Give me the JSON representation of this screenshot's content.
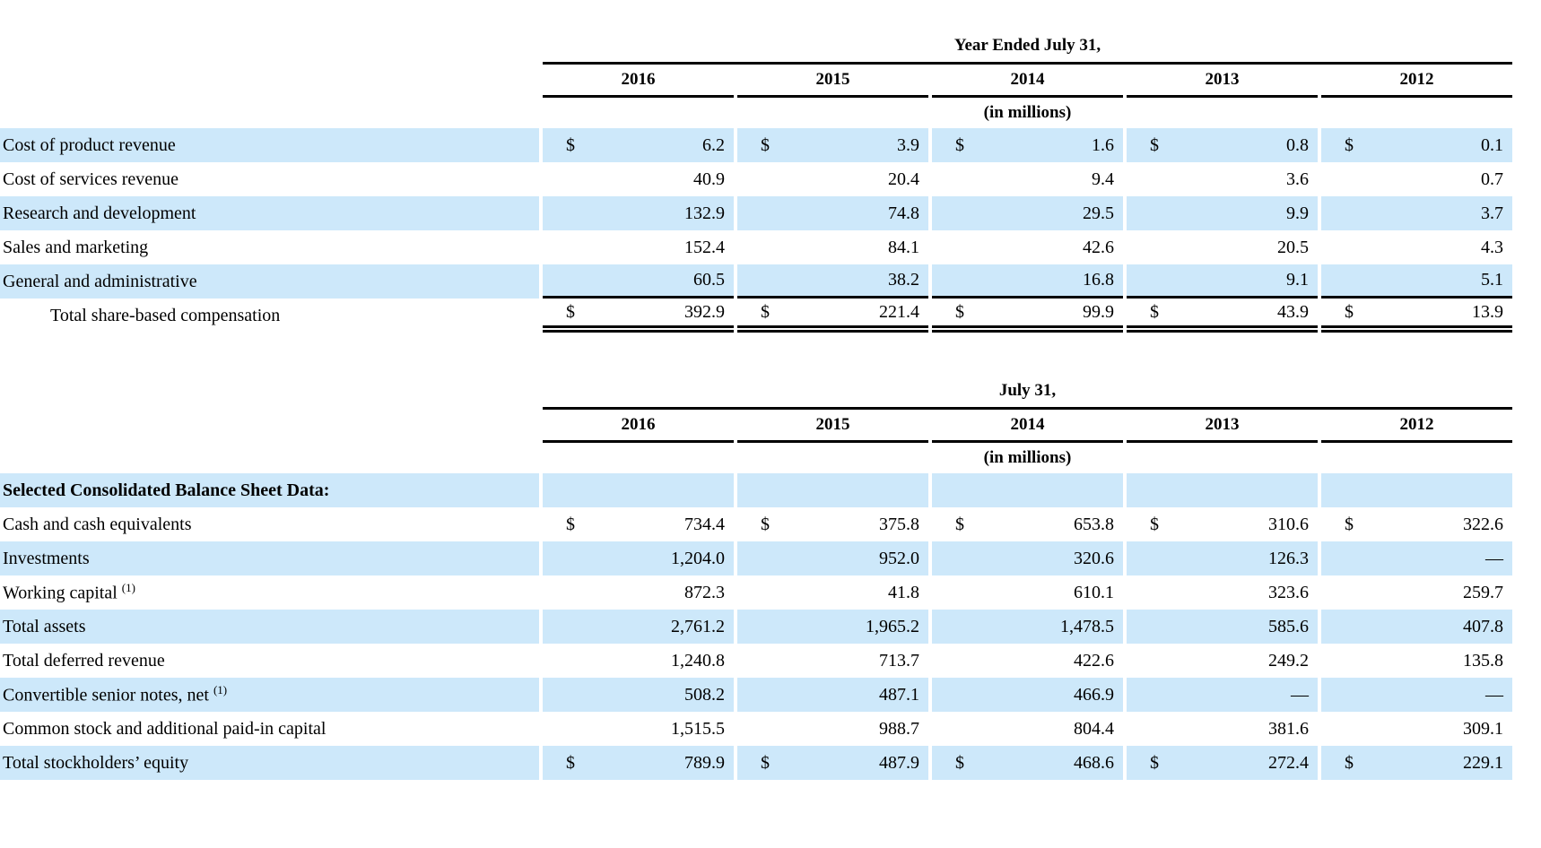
{
  "colors": {
    "row_highlight": "#cde8fa",
    "rule": "#000000",
    "text": "#000000",
    "background": "#ffffff"
  },
  "tables": [
    {
      "id": "compensation",
      "caption": "Year Ended July 31,",
      "unit_note": "(in millions)",
      "columns": [
        "2016",
        "2015",
        "2014",
        "2013",
        "2012"
      ],
      "rows": [
        {
          "label": "Cost of product revenue",
          "dollar": true,
          "shaded": true,
          "values": [
            "6.2",
            "3.9",
            "1.6",
            "0.8",
            "0.1"
          ]
        },
        {
          "label": "Cost of services revenue",
          "values": [
            "40.9",
            "20.4",
            "9.4",
            "3.6",
            "0.7"
          ]
        },
        {
          "label": "Research and development",
          "shaded": true,
          "values": [
            "132.9",
            "74.8",
            "29.5",
            "9.9",
            "3.7"
          ]
        },
        {
          "label": "Sales and marketing",
          "values": [
            "152.4",
            "84.1",
            "42.6",
            "20.5",
            "4.3"
          ]
        },
        {
          "label": "General and administrative",
          "shaded": true,
          "rule_below": true,
          "values": [
            "60.5",
            "38.2",
            "16.8",
            "9.1",
            "5.1"
          ]
        },
        {
          "label": "Total share-based compensation",
          "indent": true,
          "dollar": true,
          "double_rule_below": true,
          "values": [
            "392.9",
            "221.4",
            "99.9",
            "43.9",
            "13.9"
          ]
        }
      ]
    },
    {
      "id": "balance-sheet",
      "caption": "July 31,",
      "unit_note": "(in millions)",
      "columns": [
        "2016",
        "2015",
        "2014",
        "2013",
        "2012"
      ],
      "rows": [
        {
          "label": "Selected Consolidated Balance Sheet Data:",
          "section": true,
          "shaded": true,
          "values": [
            "",
            "",
            "",
            "",
            ""
          ]
        },
        {
          "label": "Cash and cash equivalents",
          "dollar": true,
          "values": [
            "734.4",
            "375.8",
            "653.8",
            "310.6",
            "322.6"
          ]
        },
        {
          "label": "Investments",
          "shaded": true,
          "values": [
            "1,204.0",
            "952.0",
            "320.6",
            "126.3",
            "—"
          ]
        },
        {
          "label": "Working capital",
          "sup": "(1)",
          "values": [
            "872.3",
            "41.8",
            "610.1",
            "323.6",
            "259.7"
          ]
        },
        {
          "label": "Total assets",
          "shaded": true,
          "values": [
            "2,761.2",
            "1,965.2",
            "1,478.5",
            "585.6",
            "407.8"
          ]
        },
        {
          "label": "Total deferred revenue",
          "values": [
            "1,240.8",
            "713.7",
            "422.6",
            "249.2",
            "135.8"
          ]
        },
        {
          "label": "Convertible senior notes, net",
          "sup": "(1)",
          "shaded": true,
          "values": [
            "508.2",
            "487.1",
            "466.9",
            "—",
            "—"
          ]
        },
        {
          "label": "Common stock and additional paid-in capital",
          "values": [
            "1,515.5",
            "988.7",
            "804.4",
            "381.6",
            "309.1"
          ]
        },
        {
          "label": "Total stockholders’ equity",
          "dollar": true,
          "shaded": true,
          "values": [
            "789.9",
            "487.9",
            "468.6",
            "272.4",
            "229.1"
          ]
        }
      ]
    }
  ]
}
